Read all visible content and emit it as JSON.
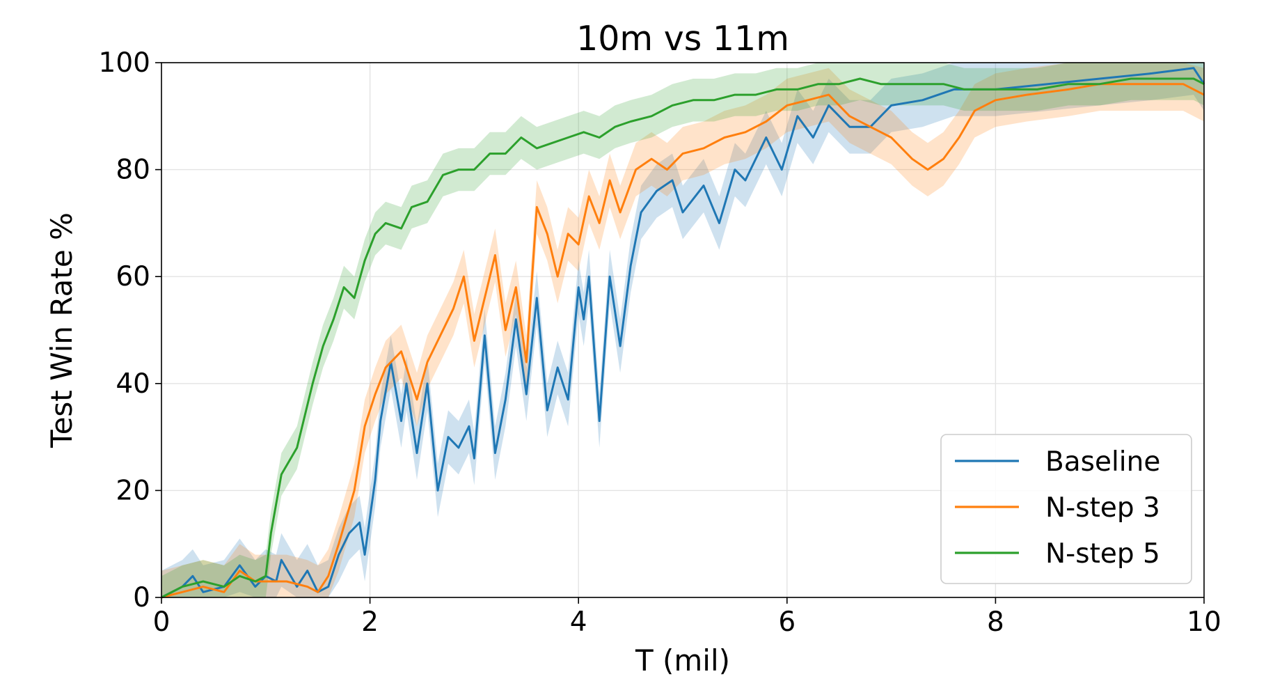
{
  "chart_data": {
    "type": "line",
    "title": "10m vs 11m",
    "xlabel": "T (mil)",
    "ylabel": "Test Win Rate %",
    "xlim": [
      0,
      10
    ],
    "ylim": [
      0,
      100
    ],
    "xticks": [
      0,
      2,
      4,
      6,
      8,
      10
    ],
    "yticks": [
      0,
      20,
      40,
      60,
      80,
      100
    ],
    "xtick_labels": [
      "0",
      "2",
      "4",
      "6",
      "8",
      "10"
    ],
    "ytick_labels": [
      "0",
      "20",
      "40",
      "60",
      "80",
      "100"
    ],
    "grid": true,
    "legend_position": "bottom-right",
    "colors": {
      "Baseline": "#1f77b4",
      "N-step 3": "#ff7f0e",
      "N-step 5": "#2ca02c"
    },
    "series": [
      {
        "name": "Baseline",
        "band": 5,
        "points": [
          [
            0,
            0
          ],
          [
            0.2,
            2
          ],
          [
            0.3,
            4
          ],
          [
            0.4,
            1
          ],
          [
            0.6,
            2
          ],
          [
            0.75,
            6
          ],
          [
            0.9,
            2
          ],
          [
            1.0,
            4
          ],
          [
            1.1,
            3
          ],
          [
            1.15,
            7
          ],
          [
            1.3,
            2
          ],
          [
            1.4,
            5
          ],
          [
            1.5,
            1
          ],
          [
            1.6,
            2
          ],
          [
            1.7,
            8
          ],
          [
            1.8,
            12
          ],
          [
            1.9,
            14
          ],
          [
            1.95,
            8
          ],
          [
            2.05,
            22
          ],
          [
            2.1,
            33
          ],
          [
            2.2,
            44
          ],
          [
            2.3,
            33
          ],
          [
            2.35,
            40
          ],
          [
            2.45,
            27
          ],
          [
            2.55,
            40
          ],
          [
            2.65,
            20
          ],
          [
            2.75,
            30
          ],
          [
            2.85,
            28
          ],
          [
            2.95,
            32
          ],
          [
            3.0,
            26
          ],
          [
            3.1,
            49
          ],
          [
            3.2,
            27
          ],
          [
            3.3,
            37
          ],
          [
            3.4,
            52
          ],
          [
            3.5,
            38
          ],
          [
            3.6,
            56
          ],
          [
            3.7,
            35
          ],
          [
            3.8,
            43
          ],
          [
            3.9,
            37
          ],
          [
            4.0,
            58
          ],
          [
            4.05,
            52
          ],
          [
            4.1,
            60
          ],
          [
            4.2,
            33
          ],
          [
            4.3,
            60
          ],
          [
            4.4,
            47
          ],
          [
            4.5,
            62
          ],
          [
            4.6,
            72
          ],
          [
            4.75,
            76
          ],
          [
            4.9,
            78
          ],
          [
            5.0,
            72
          ],
          [
            5.2,
            77
          ],
          [
            5.35,
            70
          ],
          [
            5.5,
            80
          ],
          [
            5.6,
            78
          ],
          [
            5.8,
            86
          ],
          [
            5.95,
            80
          ],
          [
            6.1,
            90
          ],
          [
            6.25,
            86
          ],
          [
            6.4,
            92
          ],
          [
            6.6,
            88
          ],
          [
            6.8,
            88
          ],
          [
            7.0,
            92
          ],
          [
            7.3,
            93
          ],
          [
            7.6,
            95
          ],
          [
            8.0,
            95
          ],
          [
            8.5,
            96
          ],
          [
            9.0,
            97
          ],
          [
            9.5,
            98
          ],
          [
            9.9,
            99
          ],
          [
            10.0,
            96
          ]
        ]
      },
      {
        "name": "N-step 3",
        "band": 5,
        "points": [
          [
            0,
            0
          ],
          [
            0.2,
            1
          ],
          [
            0.4,
            2
          ],
          [
            0.6,
            1
          ],
          [
            0.75,
            5
          ],
          [
            0.9,
            3
          ],
          [
            1.0,
            3
          ],
          [
            1.2,
            3
          ],
          [
            1.4,
            2
          ],
          [
            1.5,
            1
          ],
          [
            1.6,
            4
          ],
          [
            1.7,
            10
          ],
          [
            1.85,
            20
          ],
          [
            1.95,
            32
          ],
          [
            2.05,
            38
          ],
          [
            2.15,
            43
          ],
          [
            2.3,
            46
          ],
          [
            2.45,
            37
          ],
          [
            2.55,
            44
          ],
          [
            2.65,
            48
          ],
          [
            2.8,
            54
          ],
          [
            2.9,
            60
          ],
          [
            3.0,
            48
          ],
          [
            3.1,
            56
          ],
          [
            3.2,
            64
          ],
          [
            3.3,
            50
          ],
          [
            3.4,
            58
          ],
          [
            3.5,
            44
          ],
          [
            3.6,
            73
          ],
          [
            3.7,
            68
          ],
          [
            3.8,
            60
          ],
          [
            3.9,
            68
          ],
          [
            4.0,
            66
          ],
          [
            4.1,
            75
          ],
          [
            4.2,
            70
          ],
          [
            4.3,
            78
          ],
          [
            4.4,
            72
          ],
          [
            4.55,
            80
          ],
          [
            4.7,
            82
          ],
          [
            4.85,
            80
          ],
          [
            5.0,
            83
          ],
          [
            5.2,
            84
          ],
          [
            5.4,
            86
          ],
          [
            5.6,
            87
          ],
          [
            5.8,
            89
          ],
          [
            6.0,
            92
          ],
          [
            6.2,
            93
          ],
          [
            6.4,
            94
          ],
          [
            6.6,
            90
          ],
          [
            6.8,
            88
          ],
          [
            7.0,
            86
          ],
          [
            7.2,
            82
          ],
          [
            7.35,
            80
          ],
          [
            7.5,
            82
          ],
          [
            7.65,
            86
          ],
          [
            7.8,
            91
          ],
          [
            8.0,
            93
          ],
          [
            8.3,
            94
          ],
          [
            8.7,
            95
          ],
          [
            9.0,
            96
          ],
          [
            9.5,
            96
          ],
          [
            9.8,
            96
          ],
          [
            10.0,
            94
          ]
        ]
      },
      {
        "name": "N-step 5",
        "band": 4,
        "points": [
          [
            0,
            0
          ],
          [
            0.2,
            2
          ],
          [
            0.4,
            3
          ],
          [
            0.6,
            2
          ],
          [
            0.75,
            4
          ],
          [
            0.9,
            3
          ],
          [
            1.0,
            4
          ],
          [
            1.05,
            12
          ],
          [
            1.15,
            23
          ],
          [
            1.3,
            28
          ],
          [
            1.45,
            40
          ],
          [
            1.55,
            47
          ],
          [
            1.65,
            52
          ],
          [
            1.75,
            58
          ],
          [
            1.85,
            56
          ],
          [
            1.95,
            63
          ],
          [
            2.05,
            68
          ],
          [
            2.15,
            70
          ],
          [
            2.3,
            69
          ],
          [
            2.4,
            73
          ],
          [
            2.55,
            74
          ],
          [
            2.7,
            79
          ],
          [
            2.85,
            80
          ],
          [
            3.0,
            80
          ],
          [
            3.15,
            83
          ],
          [
            3.3,
            83
          ],
          [
            3.45,
            86
          ],
          [
            3.6,
            84
          ],
          [
            3.75,
            85
          ],
          [
            3.9,
            86
          ],
          [
            4.05,
            87
          ],
          [
            4.2,
            86
          ],
          [
            4.35,
            88
          ],
          [
            4.5,
            89
          ],
          [
            4.7,
            90
          ],
          [
            4.9,
            92
          ],
          [
            5.1,
            93
          ],
          [
            5.3,
            93
          ],
          [
            5.5,
            94
          ],
          [
            5.7,
            94
          ],
          [
            5.9,
            95
          ],
          [
            6.1,
            95
          ],
          [
            6.3,
            96
          ],
          [
            6.5,
            96
          ],
          [
            6.7,
            97
          ],
          [
            6.9,
            96
          ],
          [
            7.1,
            96
          ],
          [
            7.3,
            96
          ],
          [
            7.5,
            96
          ],
          [
            7.7,
            95
          ],
          [
            7.9,
            95
          ],
          [
            8.1,
            95
          ],
          [
            8.4,
            95
          ],
          [
            8.7,
            96
          ],
          [
            9.0,
            96
          ],
          [
            9.3,
            97
          ],
          [
            9.6,
            97
          ],
          [
            9.9,
            97
          ],
          [
            10.0,
            96
          ]
        ]
      }
    ]
  }
}
